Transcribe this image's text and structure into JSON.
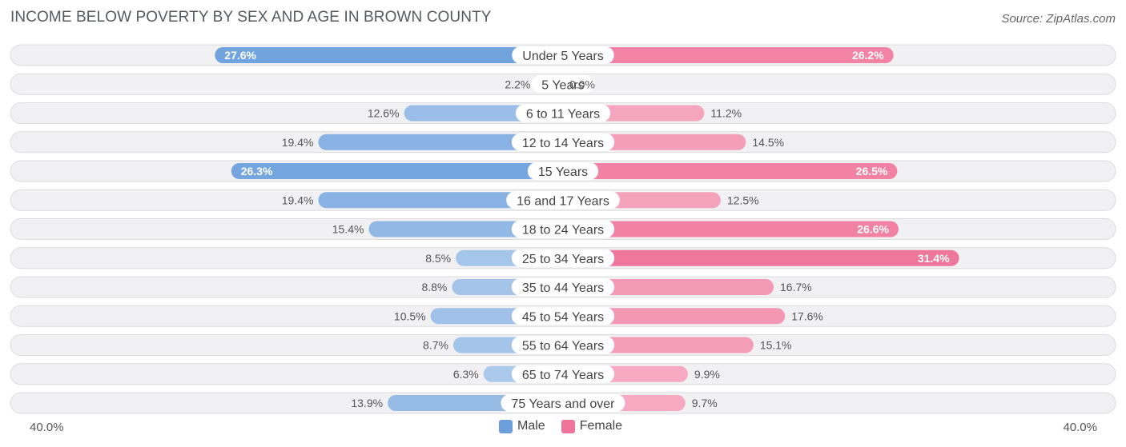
{
  "chart_data": {
    "type": "bar",
    "orientation": "horizontal-diverging",
    "title": "INCOME BELOW POVERTY BY SEX AND AGE IN BROWN COUNTY",
    "source": "Source: ZipAtlas.com",
    "categories": [
      "Under 5 Years",
      "5 Years",
      "6 to 11 Years",
      "12 to 14 Years",
      "15 Years",
      "16 and 17 Years",
      "18 to 24 Years",
      "25 to 34 Years",
      "35 to 44 Years",
      "45 to 54 Years",
      "55 to 64 Years",
      "65 to 74 Years",
      "75 Years and over"
    ],
    "series": [
      {
        "name": "Male",
        "color": "#6a9fdc",
        "values": [
          27.6,
          2.2,
          12.6,
          19.4,
          26.3,
          19.4,
          15.4,
          8.5,
          8.8,
          10.5,
          8.7,
          6.3,
          13.9
        ],
        "labels": [
          "27.6%",
          "2.2%",
          "12.6%",
          "19.4%",
          "26.3%",
          "19.4%",
          "15.4%",
          "8.5%",
          "8.8%",
          "10.5%",
          "8.7%",
          "6.3%",
          "13.9%"
        ]
      },
      {
        "name": "Female",
        "color": "#f07399",
        "values": [
          26.2,
          0.0,
          11.2,
          14.5,
          26.5,
          12.5,
          26.6,
          31.4,
          16.7,
          17.6,
          15.1,
          9.9,
          9.7
        ],
        "labels": [
          "26.2%",
          "0.0%",
          "11.2%",
          "14.5%",
          "26.5%",
          "12.5%",
          "26.6%",
          "31.4%",
          "16.7%",
          "17.6%",
          "15.1%",
          "9.9%",
          "9.7%"
        ]
      }
    ],
    "xlim": [
      -40,
      40
    ],
    "axis_min_label": "40.0%",
    "axis_max_label": "40.0%",
    "legend_position": "bottom-center"
  }
}
